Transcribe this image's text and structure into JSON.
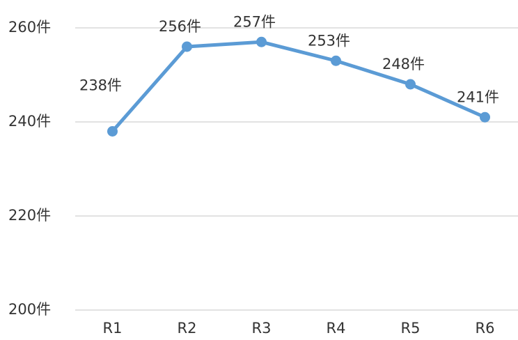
{
  "chart_data": {
    "type": "line",
    "categories": [
      "R1",
      "R2",
      "R3",
      "R4",
      "R5",
      "R6"
    ],
    "series": [
      {
        "name": null,
        "color": "#5b9bd5",
        "values": [
          238,
          256,
          257,
          253,
          248,
          241
        ],
        "value_labels": [
          "238件",
          "256件",
          "257件",
          "253件",
          "248件",
          "241件"
        ]
      }
    ],
    "ylim": [
      200,
      260
    ],
    "yticks": [
      {
        "value": 200,
        "label": "200件"
      },
      {
        "value": 220,
        "label": "220件"
      },
      {
        "value": 240,
        "label": "240件"
      },
      {
        "value": 260,
        "label": "260件"
      }
    ],
    "grid": true
  }
}
